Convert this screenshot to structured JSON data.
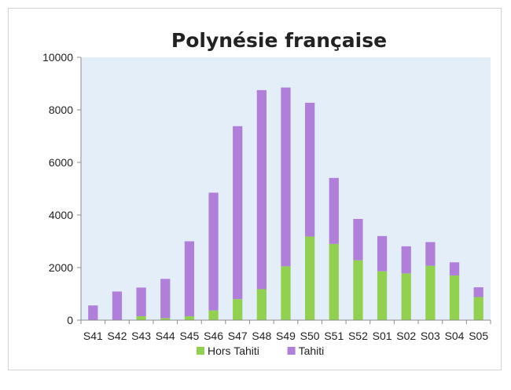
{
  "chart_data": {
    "type": "bar",
    "stacked": true,
    "title": "Polynésie française",
    "xlabel": "",
    "ylabel": "",
    "ylim": [
      0,
      10000
    ],
    "yticks": [
      0,
      2000,
      4000,
      6000,
      8000,
      10000
    ],
    "grid": false,
    "legend_position": "bottom",
    "categories": [
      "S41",
      "S42",
      "S43",
      "S44",
      "S45",
      "S46",
      "S47",
      "S48",
      "S49",
      "S50",
      "S51",
      "S52",
      "S01",
      "S02",
      "S03",
      "S04",
      "S05"
    ],
    "series": [
      {
        "name": "Hors Tahiti",
        "color": "#92d050",
        "values": [
          0,
          10,
          150,
          80,
          150,
          370,
          800,
          1180,
          2050,
          3180,
          2900,
          2280,
          1860,
          1780,
          2070,
          1700,
          880
        ]
      },
      {
        "name": "Tahiti",
        "color": "#b07fd9",
        "values": [
          560,
          1080,
          1090,
          1490,
          2850,
          4480,
          6580,
          7570,
          6800,
          5090,
          2510,
          1570,
          1340,
          1030,
          900,
          500,
          370
        ]
      }
    ],
    "plot_background": "#e3eef8"
  }
}
